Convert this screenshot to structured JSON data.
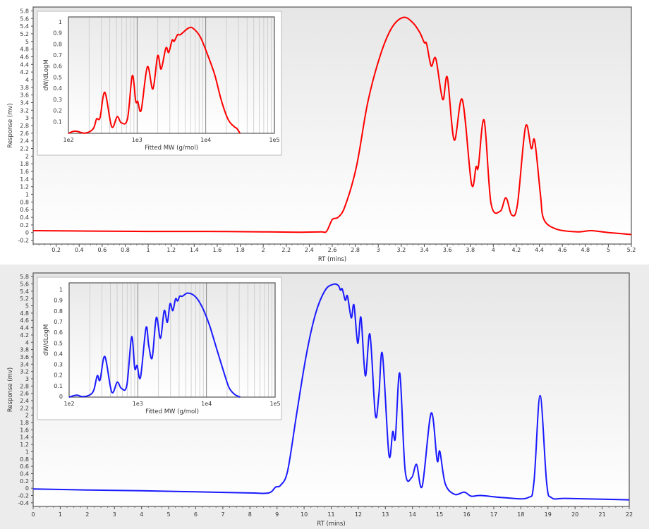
{
  "chart_data": [
    {
      "type": "line",
      "name": "top",
      "color": "#ff0000",
      "xlabel": "RT (mins)",
      "ylabel": "Response (mv)",
      "xlim": [
        0,
        5.2
      ],
      "ylim": [
        -0.3,
        5.9
      ],
      "xticks": [
        0.2,
        0.4,
        0.6,
        0.8,
        1,
        1.2,
        1.4,
        1.6,
        1.8,
        2,
        2.2,
        2.4,
        2.6,
        2.8,
        3,
        3.2,
        3.4,
        3.6,
        3.8,
        4,
        4.2,
        4.4,
        4.6,
        4.8,
        5,
        5.2
      ],
      "yticks": [
        -0.2,
        0,
        0.2,
        0.4,
        0.6,
        0.8,
        1,
        1.2,
        1.4,
        1.6,
        1.8,
        2,
        2.2,
        2.4,
        2.6,
        2.8,
        3,
        3.2,
        3.4,
        3.6,
        3.8,
        4,
        4.2,
        4.4,
        4.6,
        4.8,
        5,
        5.2,
        5.4,
        5.6,
        5.8
      ],
      "series": [
        {
          "name": "Response",
          "x": [
            0,
            0.5,
            1,
            1.5,
            2,
            2.3,
            2.5,
            2.55,
            2.6,
            2.65,
            2.71,
            2.81,
            2.91,
            3.02,
            3.12,
            3.22,
            3.3,
            3.36,
            3.4,
            3.42,
            3.46,
            3.5,
            3.56,
            3.6,
            3.66,
            3.73,
            3.81,
            3.85,
            3.87,
            3.92,
            3.98,
            4.06,
            4.11,
            4.16,
            4.21,
            4.28,
            4.33,
            4.36,
            4.41,
            4.44,
            4.55,
            4.73,
            4.85,
            5.0,
            5.2
          ],
          "y": [
            0.05,
            0.04,
            0.03,
            0.03,
            0.02,
            0.01,
            0.02,
            0.03,
            0.34,
            0.4,
            0.68,
            1.72,
            3.43,
            4.66,
            5.37,
            5.63,
            5.49,
            5.24,
            4.97,
            4.94,
            4.36,
            4.55,
            3.48,
            4.06,
            2.42,
            3.48,
            1.28,
            1.72,
            1.72,
            2.94,
            0.77,
            0.56,
            0.91,
            0.46,
            0.74,
            2.77,
            2.2,
            2.4,
            0.98,
            0.34,
            0.09,
            0.02,
            0.05,
            0.0,
            -0.05
          ]
        }
      ],
      "inset": {
        "xlabel": "Fitted MW (g/mol)",
        "ylabel": "dW/dLogM",
        "xscale": "log",
        "xlim_log10": [
          2,
          5
        ],
        "xticklabels": [
          "1e2",
          "1e3",
          "1e4",
          "1e5"
        ],
        "ylim": [
          0,
          1.05
        ],
        "yticks": [
          0.1,
          0.2,
          0.3,
          0.4,
          0.5,
          0.6,
          0.7,
          0.8,
          0.9,
          1
        ],
        "log10_mw": [
          2.0,
          2.1,
          2.24,
          2.36,
          2.41,
          2.46,
          2.53,
          2.63,
          2.71,
          2.77,
          2.86,
          2.93,
          2.98,
          3.01,
          3.06,
          3.15,
          3.23,
          3.3,
          3.35,
          3.42,
          3.46,
          3.51,
          3.54,
          3.59,
          3.63,
          3.75,
          3.82,
          3.92,
          4.02,
          4.13,
          4.23,
          4.33,
          4.42,
          4.45,
          4.5
        ],
        "values": [
          0,
          0.02,
          0.002,
          0.04,
          0.13,
          0.14,
          0.37,
          0.06,
          0.15,
          0.095,
          0.13,
          0.52,
          0.29,
          0.287,
          0.21,
          0.6,
          0.4,
          0.7,
          0.58,
          0.77,
          0.73,
          0.84,
          0.83,
          0.89,
          0.89,
          0.95,
          0.945,
          0.87,
          0.72,
          0.53,
          0.29,
          0.12,
          0.057,
          0.046,
          0
        ]
      }
    },
    {
      "type": "line",
      "name": "bottom",
      "color": "#1a1aff",
      "xlabel": "RT (mins)",
      "ylabel": "Response (mv)",
      "xlim": [
        0,
        22
      ],
      "ylim": [
        -0.5,
        5.9
      ],
      "xticks": [
        0,
        1,
        2,
        3,
        4,
        5,
        6,
        7,
        8,
        9,
        10,
        11,
        12,
        13,
        14,
        15,
        16,
        17,
        18,
        19,
        20,
        21,
        22
      ],
      "yticks": [
        -0.4,
        -0.2,
        0,
        0.2,
        0.4,
        0.6,
        0.8,
        1,
        1.2,
        1.4,
        1.6,
        1.8,
        2,
        2.2,
        2.4,
        2.6,
        2.8,
        3,
        3.2,
        3.4,
        3.6,
        3.8,
        4,
        4.2,
        4.4,
        4.6,
        4.8,
        5,
        5.2,
        5.4,
        5.6,
        5.8
      ],
      "series": [
        {
          "name": "Response",
          "x": [
            0,
            2,
            4,
            6,
            8,
            8.69,
            8.95,
            9.13,
            9.39,
            9.73,
            10.08,
            10.43,
            10.78,
            11.08,
            11.26,
            11.34,
            11.41,
            11.52,
            11.6,
            11.74,
            11.84,
            11.98,
            12.1,
            12.26,
            12.43,
            12.63,
            12.76,
            12.89,
            13.13,
            13.27,
            13.37,
            13.53,
            13.73,
            13.97,
            14.15,
            14.36,
            14.69,
            14.91,
            15.01,
            15.21,
            15.56,
            15.91,
            16.17,
            16.52,
            17.39,
            18.26,
            18.48,
            18.71,
            18.95,
            19.13,
            19.65,
            21,
            22
          ],
          "y": [
            -0.02,
            -0.05,
            -0.07,
            -0.1,
            -0.13,
            -0.13,
            0.03,
            0.08,
            0.47,
            2.06,
            3.65,
            4.8,
            5.43,
            5.59,
            5.56,
            5.43,
            5.46,
            5.15,
            5.27,
            4.67,
            5.02,
            3.97,
            4.68,
            3.08,
            4.22,
            2.0,
            2.57,
            3.68,
            0.92,
            1.55,
            1.39,
            3.15,
            0.47,
            0.29,
            0.65,
            0.06,
            2.06,
            0.76,
            1.01,
            0.12,
            -0.17,
            -0.11,
            -0.22,
            -0.2,
            -0.26,
            -0.26,
            0.15,
            2.54,
            0.15,
            -0.26,
            -0.28,
            -0.3,
            -0.32
          ]
        }
      ],
      "inset": {
        "xlabel": "Fitted MW (g/mol)",
        "ylabel": "dW/dLogM",
        "xscale": "log",
        "xlim_log10": [
          2,
          5
        ],
        "xticklabels": [
          "1e2",
          "1e3",
          "1e4",
          "1e5"
        ],
        "ylim": [
          0,
          1.07
        ],
        "yticks": [
          0,
          0.1,
          0.2,
          0.3,
          0.4,
          0.5,
          0.6,
          0.7,
          0.8,
          0.9,
          1
        ],
        "log10_mw": [
          2.0,
          2.11,
          2.195,
          2.3,
          2.36,
          2.41,
          2.45,
          2.52,
          2.62,
          2.7,
          2.76,
          2.84,
          2.91,
          2.955,
          2.99,
          3.04,
          3.12,
          3.16,
          3.21,
          3.27,
          3.33,
          3.385,
          3.43,
          3.47,
          3.51,
          3.55,
          3.58,
          3.61,
          3.65,
          3.73,
          3.84,
          3.94,
          4.04,
          4.145,
          4.25,
          4.33,
          4.41,
          4.49
        ],
        "values": [
          0,
          0.018,
          0.004,
          0.02,
          0.066,
          0.2,
          0.16,
          0.38,
          0.048,
          0.14,
          0.083,
          0.11,
          0.565,
          0.27,
          0.295,
          0.186,
          0.65,
          0.48,
          0.37,
          0.745,
          0.55,
          0.81,
          0.7,
          0.875,
          0.81,
          0.92,
          0.9,
          0.945,
          0.945,
          0.974,
          0.94,
          0.84,
          0.68,
          0.46,
          0.24,
          0.088,
          0.026,
          0
        ]
      }
    }
  ]
}
